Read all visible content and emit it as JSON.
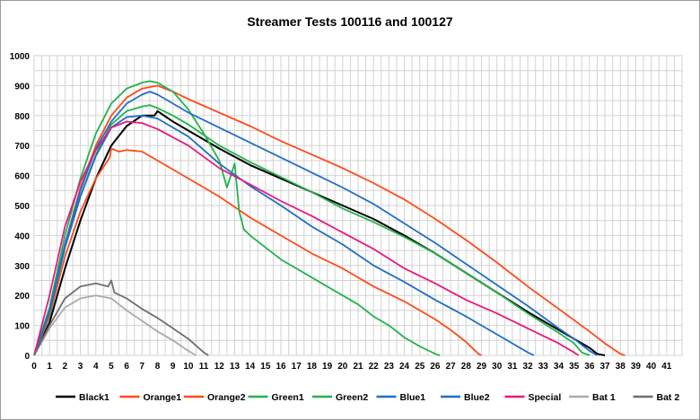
{
  "chart_data": {
    "type": "line",
    "title": "Streamer Tests 100116 and 100127",
    "xlabel": "",
    "ylabel": "",
    "xlim": [
      0,
      42
    ],
    "ylim": [
      0,
      1000
    ],
    "x_ticks": [
      "0",
      "1",
      "2",
      "3",
      "4",
      "5",
      "6",
      "7",
      "8",
      "9",
      "10",
      "11",
      "12",
      "13",
      "14",
      "15",
      "16",
      "17",
      "18",
      "19",
      "20",
      "21",
      "22",
      "23",
      "24",
      "25",
      "26",
      "27",
      "28",
      "29",
      "30",
      "31",
      "32",
      "33",
      "34",
      "35",
      "36",
      "37",
      "38",
      "39",
      "40",
      "41"
    ],
    "y_ticks": [
      "0",
      "100",
      "200",
      "300",
      "400",
      "500",
      "600",
      "700",
      "800",
      "900",
      "1000"
    ],
    "grid": true,
    "legend_position": "bottom",
    "series": [
      {
        "name": "Black1",
        "color": "#000000",
        "x": [
          0,
          1,
          2,
          3,
          4,
          5,
          6,
          7,
          7.8,
          8,
          9,
          10,
          12,
          14,
          16,
          18,
          20,
          22,
          24,
          26,
          28,
          30,
          32,
          34,
          35,
          36,
          36.5,
          37
        ],
        "y": [
          0,
          110,
          290,
          450,
          590,
          700,
          765,
          800,
          800,
          815,
          780,
          750,
          690,
          635,
          590,
          545,
          500,
          455,
          400,
          340,
          275,
          210,
          145,
          85,
          55,
          25,
          5,
          0
        ]
      },
      {
        "name": "Orange1",
        "color": "#ff4a1a",
        "x": [
          0,
          1,
          2,
          3,
          4,
          5,
          6,
          7,
          8,
          9,
          10,
          12,
          14,
          16,
          18,
          20,
          22,
          24,
          26,
          28,
          30,
          32,
          34,
          36,
          37,
          38,
          38.3
        ],
        "y": [
          0,
          150,
          370,
          560,
          700,
          800,
          860,
          890,
          900,
          880,
          855,
          810,
          765,
          715,
          670,
          625,
          575,
          520,
          455,
          385,
          310,
          230,
          155,
          80,
          40,
          5,
          0
        ]
      },
      {
        "name": "Orange2",
        "color": "#ff4a1a",
        "x": [
          0,
          1,
          2,
          3,
          4,
          4.9,
          5,
          5.5,
          6,
          7,
          8,
          10,
          12,
          14,
          16,
          18,
          20,
          22,
          24,
          26,
          27,
          28,
          28.8,
          29
        ],
        "y": [
          0,
          130,
          330,
          480,
          590,
          660,
          690,
          680,
          685,
          680,
          650,
          590,
          530,
          460,
          400,
          340,
          290,
          230,
          180,
          120,
          85,
          45,
          5,
          0
        ]
      },
      {
        "name": "Green1",
        "color": "#22b24c",
        "x": [
          0,
          1,
          2,
          3,
          4,
          5,
          6,
          7,
          7.5,
          8,
          9,
          10,
          12,
          14,
          16,
          18,
          20,
          22,
          24,
          26,
          28,
          30,
          32,
          34,
          35,
          35.5,
          36
        ],
        "y": [
          0,
          140,
          360,
          530,
          670,
          770,
          815,
          830,
          835,
          825,
          800,
          770,
          700,
          645,
          595,
          545,
          490,
          445,
          395,
          340,
          275,
          210,
          140,
          75,
          40,
          10,
          0
        ]
      },
      {
        "name": "Green2",
        "color": "#22b24c",
        "x": [
          0,
          1,
          2,
          3,
          4,
          5,
          6,
          7,
          7.5,
          8,
          9,
          10,
          11,
          12,
          12.5,
          13,
          13.3,
          13.6,
          14,
          15,
          16,
          17,
          18,
          19,
          20,
          21,
          22,
          23,
          24,
          25,
          26,
          26.3
        ],
        "y": [
          0,
          160,
          400,
          590,
          740,
          840,
          890,
          910,
          915,
          910,
          880,
          820,
          740,
          650,
          560,
          640,
          480,
          420,
          400,
          360,
          320,
          290,
          260,
          230,
          200,
          170,
          130,
          100,
          60,
          30,
          5,
          0
        ]
      },
      {
        "name": "Blue1",
        "color": "#1f6fc6",
        "x": [
          0,
          1,
          2,
          3,
          4,
          5,
          6,
          7,
          7.5,
          8,
          9,
          10,
          12,
          14,
          16,
          18,
          20,
          22,
          24,
          26,
          28,
          30,
          32,
          34,
          35,
          36,
          36.5
        ],
        "y": [
          0,
          150,
          370,
          550,
          690,
          780,
          840,
          870,
          880,
          870,
          840,
          810,
          760,
          710,
          660,
          610,
          560,
          505,
          440,
          375,
          305,
          235,
          165,
          90,
          55,
          15,
          0
        ]
      },
      {
        "name": "Blue2",
        "color": "#1f6fc6",
        "x": [
          0,
          1,
          2,
          3,
          4,
          5,
          6,
          7,
          8,
          10,
          12,
          14,
          16,
          18,
          20,
          22,
          24,
          26,
          28,
          30,
          31,
          32,
          32.4
        ],
        "y": [
          0,
          145,
          360,
          530,
          665,
          760,
          795,
          800,
          790,
          730,
          640,
          565,
          500,
          430,
          370,
          300,
          245,
          185,
          130,
          70,
          40,
          10,
          0
        ]
      },
      {
        "name": "Special",
        "color": "#e8197d",
        "x": [
          0,
          1,
          2,
          3,
          4,
          5,
          6,
          7,
          8,
          10,
          12,
          14,
          16,
          18,
          20,
          22,
          24,
          26,
          28,
          30,
          32,
          34,
          35,
          35.3
        ],
        "y": [
          0,
          200,
          430,
          580,
          685,
          760,
          780,
          775,
          755,
          700,
          625,
          570,
          515,
          465,
          410,
          355,
          290,
          240,
          185,
          140,
          90,
          40,
          10,
          0
        ]
      },
      {
        "name": "Bat 1",
        "color": "#aaaaaa",
        "x": [
          0,
          1,
          2,
          3,
          4,
          5,
          6,
          7,
          8,
          9,
          10,
          10.5
        ],
        "y": [
          0,
          90,
          160,
          190,
          200,
          190,
          150,
          115,
          80,
          50,
          15,
          0
        ]
      },
      {
        "name": "Bat 2",
        "color": "#6e6e6e",
        "x": [
          0,
          1,
          2,
          3,
          4,
          4.8,
          5,
          5.2,
          6,
          7,
          8,
          9,
          10,
          11,
          11.3
        ],
        "y": [
          0,
          100,
          190,
          230,
          240,
          230,
          250,
          210,
          190,
          155,
          125,
          90,
          55,
          10,
          0
        ]
      }
    ]
  }
}
